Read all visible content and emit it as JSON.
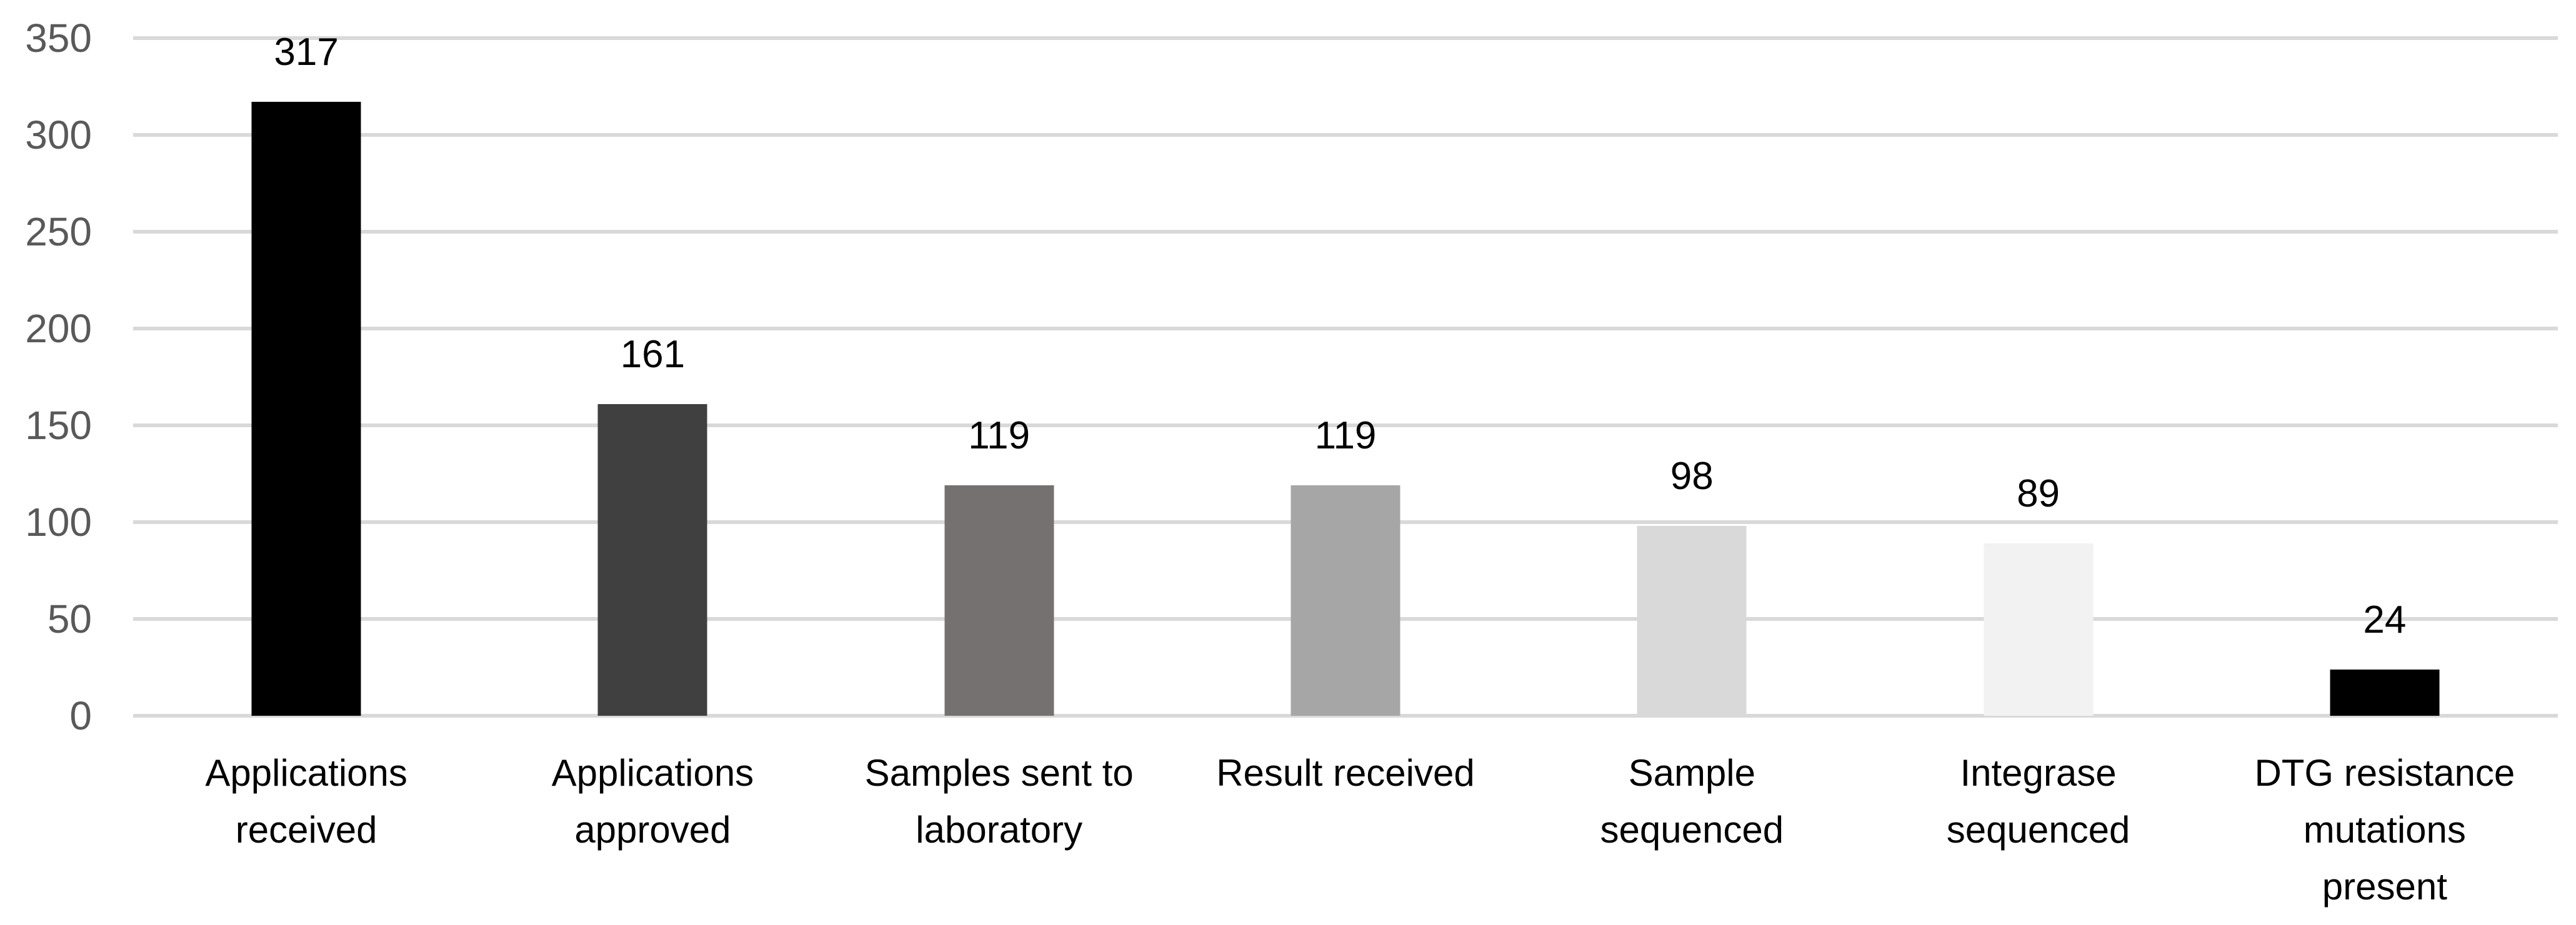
{
  "chart_data": {
    "type": "bar",
    "title": "",
    "xlabel": "",
    "ylabel": "",
    "categories": [
      "Applications\nreceived",
      "Applications\napproved",
      "Samples sent to\nlaboratory",
      "Result received",
      "Sample\nsequenced",
      "Integrase\nsequenced",
      "DTG resistance\nmutations\npresent"
    ],
    "values": [
      317,
      161,
      119,
      119,
      98,
      89,
      24
    ],
    "data_labels": [
      "317",
      "161",
      "119",
      "119",
      "98",
      "89",
      "24"
    ],
    "bar_colors": [
      "#000000",
      "#404040",
      "#757171",
      "#a6a6a6",
      "#d9d9d9",
      "#f2f2f2",
      "#000000"
    ],
    "yticks": [
      0,
      50,
      100,
      150,
      200,
      250,
      300,
      350
    ],
    "ylim": [
      0,
      350
    ],
    "ytick_step": 50,
    "grid": "horizontal-only",
    "legend_position": "none",
    "colors": {
      "gridline": "#d9d9d9",
      "y_tick_label": "#595959",
      "data_label": "#000000",
      "category_label": "#000000",
      "background": "#ffffff"
    }
  }
}
